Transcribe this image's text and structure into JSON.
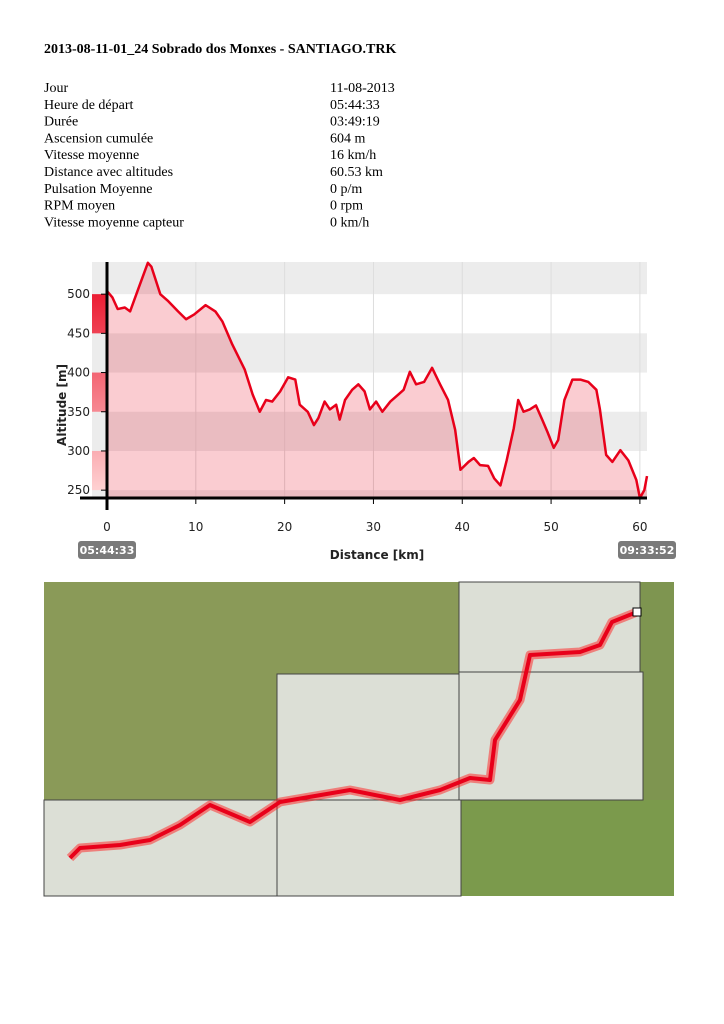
{
  "header": {
    "title": "2013-08-11-01_24 Sobrado dos Monxes - SANTIAGO.TRK"
  },
  "stats": {
    "rows": [
      [
        "Jour",
        "11-08-2013"
      ],
      [
        "Heure de départ",
        "05:44:33"
      ],
      [
        "Durée",
        "03:49:19"
      ],
      [
        "Ascension cumulée",
        "604 m"
      ],
      [
        "Vitesse moyenne",
        "16 km/h"
      ],
      [
        "Distance avec altitudes",
        "60.53 km"
      ],
      [
        "Pulsation Moyenne",
        "0 p/m"
      ],
      [
        "RPM moyen",
        "0 rpm"
      ],
      [
        "Vitesse moyenne capteur",
        "0 km/h"
      ]
    ]
  },
  "chart_data": {
    "type": "area",
    "x_label": "Distance [km]",
    "y_label": "Altitude [m]",
    "start_time": "05:44:33",
    "end_time": "09:33:52",
    "color": "#e8001a",
    "x": [
      0,
      0.6,
      1.2,
      2,
      2.6,
      3.5,
      4.6,
      5,
      6,
      6.9,
      8,
      8.9,
      9.8,
      11.1,
      12.2,
      13,
      14.1,
      15.5,
      16.4,
      17.2,
      17.9,
      18.6,
      19.5,
      20.4,
      21.2,
      21.7,
      22.6,
      23.3,
      23.8,
      24.5,
      25.1,
      25.8,
      26.2,
      26.8,
      27.6,
      28.3,
      29,
      29.6,
      30.3,
      31,
      31.9,
      32.8,
      33.4,
      34.1,
      34.8,
      35.7,
      36.6,
      37.5,
      38.4,
      39.2,
      39.8,
      40.7,
      41.3,
      42,
      42.9,
      43.6,
      44.3,
      45,
      45.8,
      46.3,
      46.9,
      47.6,
      48.3,
      49,
      49.6,
      50.3,
      50.8,
      51.5,
      52.4,
      53.3,
      54.2,
      55.1,
      55.5,
      56.2,
      56.9,
      57.8,
      58.7,
      59.6,
      60,
      60.5,
      60.8
    ],
    "values": [
      504,
      496,
      481,
      483,
      478,
      506,
      540,
      535,
      500,
      491,
      478,
      468,
      474,
      486,
      478,
      465,
      436,
      404,
      372,
      350,
      365,
      363,
      376,
      394,
      391,
      359,
      350,
      333,
      342,
      363,
      353,
      359,
      340,
      365,
      378,
      385,
      376,
      353,
      363,
      350,
      363,
      372,
      378,
      401,
      385,
      388,
      406,
      385,
      365,
      327,
      276,
      286,
      291,
      282,
      281,
      265,
      256,
      288,
      329,
      365,
      350,
      353,
      358,
      340,
      324,
      304,
      314,
      365,
      391,
      391,
      388,
      378,
      353,
      295,
      286,
      301,
      288,
      263,
      240,
      250,
      268
    ],
    "xlim": [
      0,
      60.8
    ],
    "ylim": [
      240,
      541
    ],
    "xticks": [
      0,
      10,
      20,
      30,
      40,
      50,
      60
    ],
    "yticks": [
      250,
      300,
      350,
      400,
      450,
      500
    ],
    "grid": true
  }
}
